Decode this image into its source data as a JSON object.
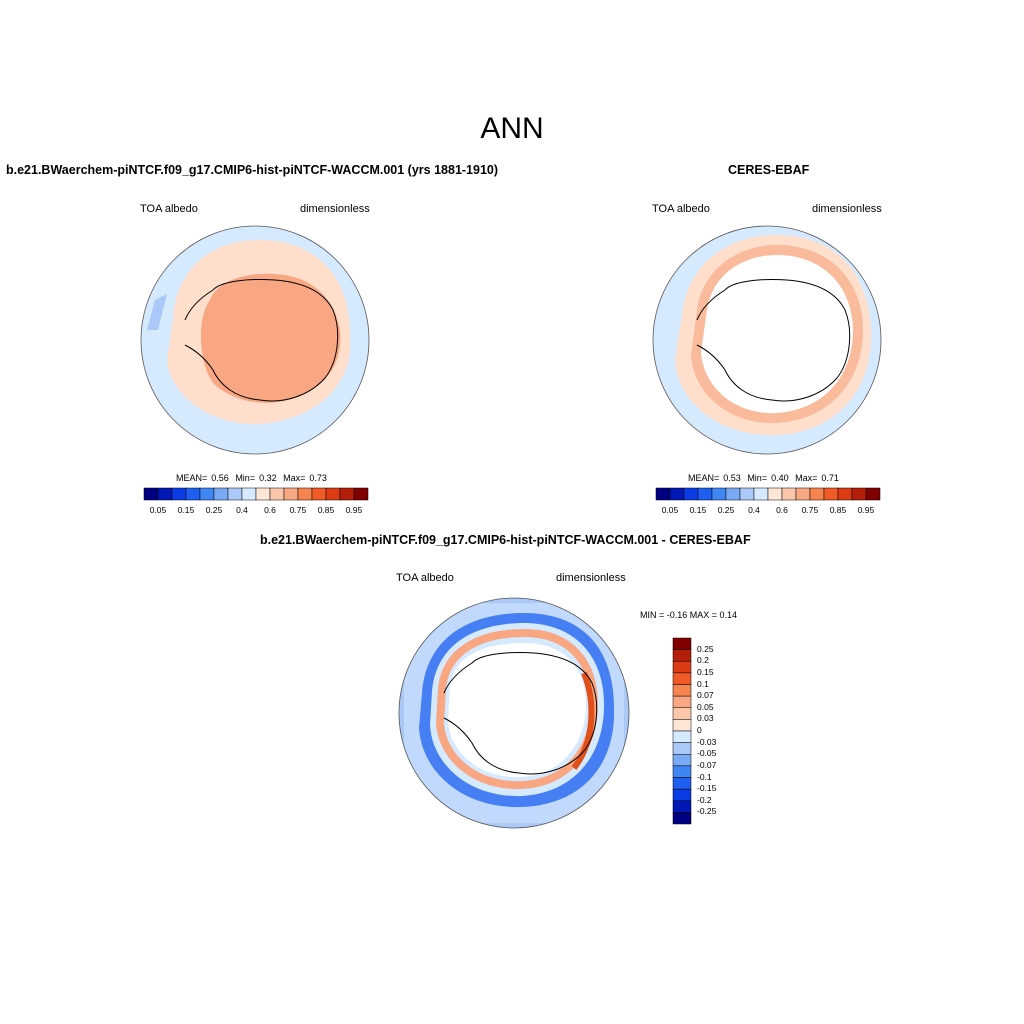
{
  "title": "ANN",
  "colors": {
    "ocean_light_blue": "#d6eaff",
    "peach_light": "#ffdfcc",
    "salmon": "#f8a782",
    "blue_mid": "#3f86f2",
    "red_deep": "#e0501a",
    "coast": "#000000",
    "land_mask": "#ffffff"
  },
  "panels": {
    "model": {
      "title": "b.e21.BWaerchem-piNTCF.f09_g17.CMIP6-hist-piNTCF-WACCM.001 (yrs 1881-1910)",
      "left_label": "TOA albedo",
      "right_label": "dimensionless",
      "stats": {
        "mean_label": "MEAN=",
        "mean": "0.56",
        "min_label": "Min=",
        "min": "0.32",
        "max_label": "Max=",
        "max": "0.73"
      }
    },
    "obs": {
      "title": "CERES-EBAF",
      "left_label": "TOA albedo",
      "right_label": "dimensionless",
      "stats": {
        "mean_label": "MEAN=",
        "mean": "0.53",
        "min_label": "Min=",
        "min": "0.40",
        "max_label": "Max=",
        "max": "0.71"
      }
    },
    "diff": {
      "title": "b.e21.BWaerchem-piNTCF.f09_g17.CMIP6-hist-piNTCF-WACCM.001 - CERES-EBAF",
      "left_label": "TOA albedo",
      "right_label": "dimensionless",
      "minmax": "MIN =  -0.16 MAX =   0.14"
    }
  },
  "colorbar_h": {
    "colors": [
      "#000080",
      "#0019b4",
      "#0a3ce6",
      "#1e5ff0",
      "#3f86f2",
      "#7aaaf6",
      "#aac8f8",
      "#d6eaff",
      "#ffe6d6",
      "#fcc6aa",
      "#f8a782",
      "#f5844f",
      "#f05a26",
      "#dc3c14",
      "#b41e0a",
      "#800000"
    ],
    "tick_labels": [
      "0.05",
      "0.15",
      "0.25",
      "0.4",
      "0.6",
      "0.75",
      "0.85",
      "0.95"
    ]
  },
  "colorbar_v": {
    "colors": [
      "#800000",
      "#b41e0a",
      "#dc3c14",
      "#f05a26",
      "#f5844f",
      "#f8a782",
      "#fcc6aa",
      "#ffe6d6",
      "#d6eaff",
      "#aac8f8",
      "#7aaaf6",
      "#3f86f2",
      "#1e5ff0",
      "#0a3ce6",
      "#0019b4",
      "#000080"
    ],
    "tick_labels": [
      "0.25",
      "0.2",
      "0.15",
      "0.1",
      "0.07",
      "0.05",
      "0.03",
      "0",
      "-0.03",
      "-0.05",
      "-0.07",
      "-0.1",
      "-0.15",
      "-0.2",
      "-0.25"
    ]
  }
}
